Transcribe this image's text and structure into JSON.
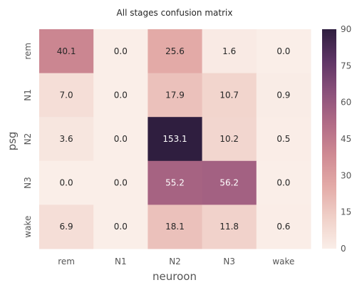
{
  "chart_data": {
    "type": "heatmap",
    "title": "All stages confusion matrix",
    "xlabel": "neuroon",
    "ylabel": "psg",
    "x_categories": [
      "rem",
      "N1",
      "N2",
      "N3",
      "wake"
    ],
    "y_categories": [
      "rem",
      "N1",
      "N2",
      "N3",
      "wake"
    ],
    "values": [
      [
        40.1,
        0.0,
        25.6,
        1.6,
        0.0
      ],
      [
        7.0,
        0.0,
        17.9,
        10.7,
        0.9
      ],
      [
        3.6,
        0.0,
        153.1,
        10.2,
        0.5
      ],
      [
        0.0,
        0.0,
        55.2,
        56.2,
        0.0
      ],
      [
        6.9,
        0.0,
        18.1,
        11.8,
        0.6
      ]
    ],
    "value_labels": [
      [
        "40.1",
        "0.0",
        "25.6",
        "1.6",
        "0.0"
      ],
      [
        "7.0",
        "0.0",
        "17.9",
        "10.7",
        "0.9"
      ],
      [
        "3.6",
        "0.0",
        "153.1",
        "10.2",
        "0.5"
      ],
      [
        "0.0",
        "0.0",
        "55.2",
        "56.2",
        "0.0"
      ],
      [
        "6.9",
        "0.0",
        "18.1",
        "11.8",
        "0.6"
      ]
    ],
    "colorbar": {
      "range": [
        0,
        90
      ],
      "ticks": [
        0,
        15,
        30,
        45,
        60,
        75,
        90
      ],
      "tick_labels": [
        "0",
        "15",
        "30",
        "45",
        "60",
        "75",
        "90"
      ]
    },
    "colormap": [
      "#faeee8",
      "#f0d0c8",
      "#e3aaa7",
      "#cf8a93",
      "#b16b86",
      "#8a507a",
      "#5e3565",
      "#2f1e3f"
    ],
    "grid": false
  }
}
